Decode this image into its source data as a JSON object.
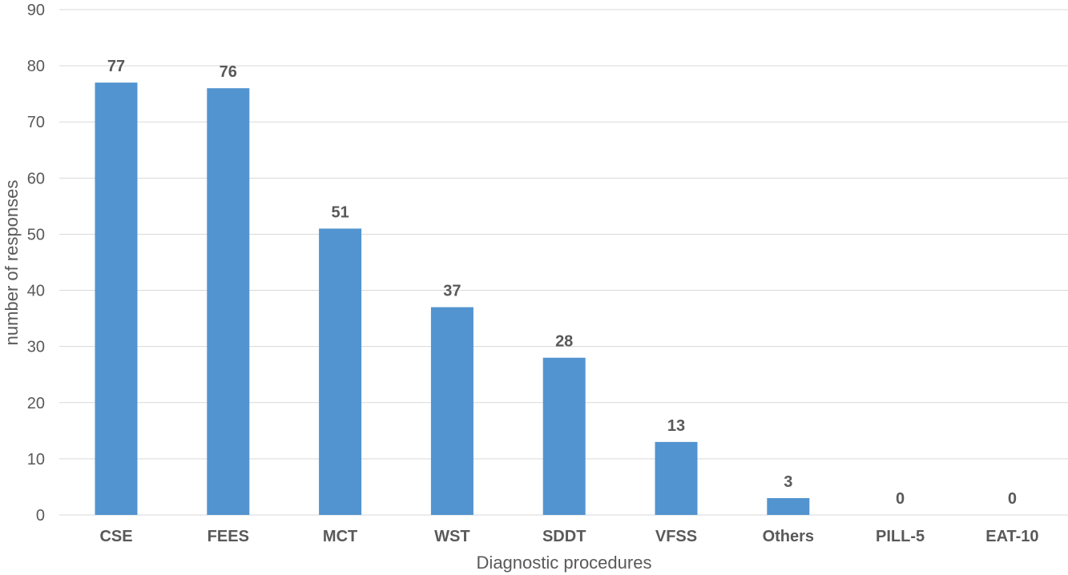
{
  "chart_data": {
    "type": "bar",
    "categories": [
      "CSE",
      "FEES",
      "MCT",
      "WST",
      "SDDT",
      "VFSS",
      "Others",
      "PILL-5",
      "EAT-10"
    ],
    "series": [
      {
        "values": [
          77,
          76,
          51,
          37,
          28,
          13,
          3,
          0,
          0
        ],
        "color": "#5294cf"
      }
    ],
    "xlabel": "Diagnostic procedures",
    "ylabel": "number of responses",
    "ylim": [
      0,
      90
    ],
    "yticks": [
      0,
      10,
      20,
      30,
      40,
      50,
      60,
      70,
      80,
      90
    ],
    "grid": true,
    "data_labels": true
  }
}
